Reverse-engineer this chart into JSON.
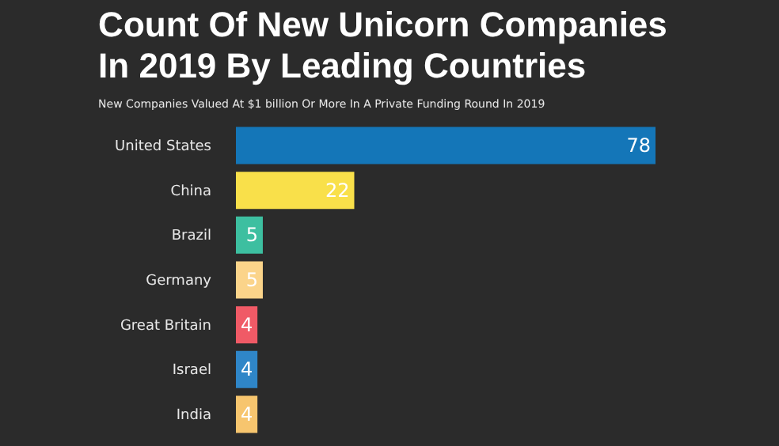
{
  "chart_data": {
    "type": "bar",
    "orientation": "horizontal",
    "title": "Count Of New Unicorn Companies In 2019 By Leading Countries",
    "subtitle": "New Companies Valued At $1 billion Or More In A Private Funding Round In 2019",
    "categories": [
      "United States",
      "China",
      "Brazil",
      "Germany",
      "Great Britain",
      "Israel",
      "India"
    ],
    "values": [
      78,
      22,
      5,
      5,
      4,
      4,
      4
    ],
    "colors": [
      "#1476b8",
      "#f9e04a",
      "#3dbfa0",
      "#fbd48a",
      "#f05a66",
      "#2f86c8",
      "#f7c56e"
    ],
    "data_labels": true
  }
}
